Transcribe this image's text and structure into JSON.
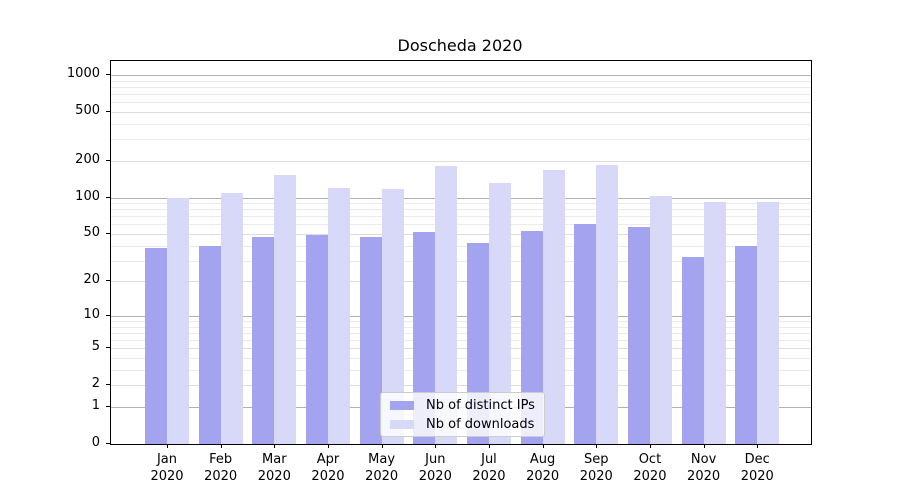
{
  "title": "Doscheda 2020",
  "chart_data": {
    "type": "bar",
    "title": "Doscheda 2020",
    "categories": [
      "Jan 2020",
      "Feb 2020",
      "Mar 2020",
      "Apr 2020",
      "May 2020",
      "Jun 2020",
      "Jul 2020",
      "Aug 2020",
      "Sep 2020",
      "Oct 2020",
      "Nov 2020",
      "Dec 2020"
    ],
    "series": [
      {
        "name": "Nb of distinct IPs",
        "color": "#a3a3f0",
        "values": [
          38,
          40,
          47,
          49,
          47,
          52,
          42,
          53,
          60,
          57,
          32,
          40
        ]
      },
      {
        "name": "Nb of downloads",
        "color": "#d8d8f8",
        "values": [
          100,
          108,
          152,
          120,
          117,
          180,
          132,
          168,
          183,
          103,
          91,
          91
        ]
      }
    ],
    "xlabel": "",
    "ylabel": "",
    "y_scale": "log1p",
    "y_ticks": [
      0,
      1,
      2,
      5,
      10,
      20,
      50,
      100,
      200,
      500,
      1000
    ],
    "ylim": [
      0,
      1300
    ],
    "grid": true,
    "legend_position": "lower center",
    "colors": {
      "grid_decade": "#b0b0b0",
      "grid_labeled": "#dddddd",
      "grid_minor": "#ebebeb",
      "axis": "#000000",
      "background": "#ffffff"
    }
  }
}
